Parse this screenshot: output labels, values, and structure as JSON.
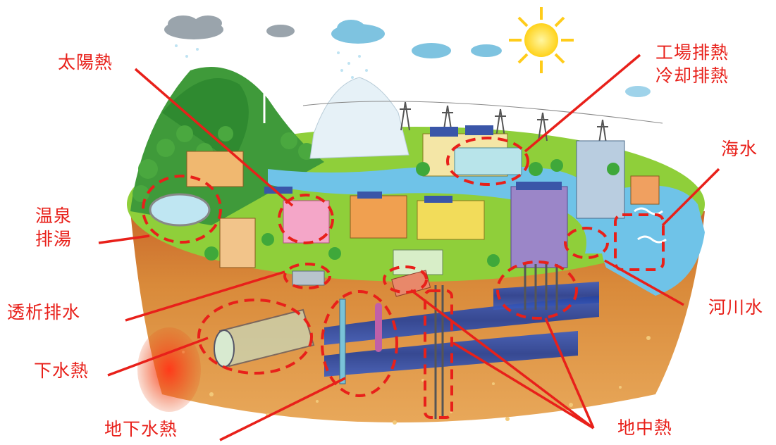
{
  "labels": {
    "solar": "太陽熱",
    "factory_line1": "工場排熱",
    "factory_line2": "冷却排熱",
    "seawater": "海水",
    "onsen_line1": "温泉",
    "onsen_line2": "排湯",
    "dialysis": "透析排水",
    "river": "河川水",
    "sewage": "下水熱",
    "groundwater": "地下水熱",
    "geothermal": "地中熱"
  },
  "colors": {
    "annotation": "#e8201a",
    "soil": "#d98a3a",
    "grass": "#8fcf3a",
    "water": "#6fc3e8",
    "aquifer": "#2f4fb0"
  }
}
